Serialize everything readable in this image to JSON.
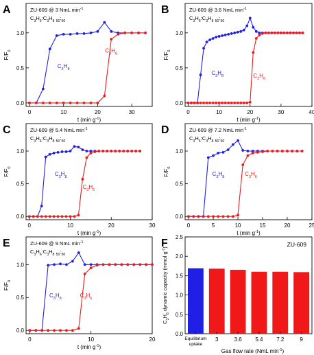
{
  "figure": {
    "width": 458,
    "height": 517,
    "colors": {
      "blue": "#1f1fe6",
      "red": "#f01818",
      "axis": "#000000"
    }
  },
  "chart_data": [
    {
      "panel": "A",
      "type": "line",
      "title": "ZU-609 @ 3 NmL min",
      "title_sup": "-1",
      "feed_label": "C3H6:C3H8  50:50",
      "xlabel": "t (min g",
      "ylabel": "F/F0",
      "xlim": [
        -1,
        36
      ],
      "ylim": [
        -0.05,
        1.42
      ],
      "xticks": [
        0,
        10,
        20,
        30
      ],
      "yticks": [
        0.0,
        0.5,
        1.0
      ],
      "series": [
        {
          "name": "C3H8",
          "color": "#1f1fe6",
          "x": [
            0,
            2,
            4,
            6,
            8,
            10,
            12,
            14,
            16,
            18,
            20,
            22,
            24,
            26,
            28,
            30,
            32,
            34
          ],
          "y": [
            0,
            0,
            0.2,
            0.77,
            0.96,
            0.98,
            0.98,
            0.99,
            0.99,
            1.0,
            1.02,
            1.15,
            1.02,
            1.0,
            1.0,
            1.0,
            1.0,
            1.0
          ]
        },
        {
          "name": "C3H6",
          "color": "#f01818",
          "x": [
            0,
            2,
            4,
            6,
            8,
            10,
            12,
            14,
            16,
            18,
            20,
            22,
            24,
            26,
            28,
            30,
            32,
            34
          ],
          "y": [
            0,
            0,
            0,
            0,
            0,
            0,
            0,
            0,
            0,
            0,
            0,
            0.1,
            0.91,
            0.98,
            1.0,
            1.0,
            1.0,
            1.0
          ]
        }
      ]
    },
    {
      "panel": "B",
      "type": "line",
      "title": "ZU-609 @ 3.6 NmL min",
      "title_sup": "-1",
      "feed_label": "C3H6:C3H8  50:50",
      "xlabel": "t (min g",
      "ylabel": "F/F0",
      "xlim": [
        -1,
        40
      ],
      "ylim": [
        -0.05,
        1.42
      ],
      "xticks": [
        0,
        10,
        20,
        30,
        40
      ],
      "yticks": [
        0.0,
        0.5,
        1.0
      ],
      "series": [
        {
          "name": "C3H8",
          "color": "#1f1fe6",
          "x": [
            0,
            1,
            2,
            3,
            4,
            5,
            6,
            7,
            8,
            9,
            10,
            11,
            12,
            13,
            14,
            15,
            16,
            17,
            18,
            19,
            20,
            21,
            22,
            23,
            24,
            25,
            26,
            27,
            28,
            29,
            30,
            31,
            32,
            33,
            34,
            35,
            36,
            37
          ],
          "y": [
            0,
            0,
            0,
            0,
            0.4,
            0.78,
            0.87,
            0.9,
            0.92,
            0.94,
            0.95,
            0.96,
            0.97,
            0.98,
            0.99,
            1.0,
            1.01,
            1.02,
            1.04,
            1.1,
            1.21,
            1.08,
            1.02,
            1.0,
            1.0,
            1.0,
            1.0,
            1.0,
            1.0,
            1.0,
            1.0,
            1.0,
            1.0,
            1.0,
            1.0,
            1.0,
            1.0,
            1.0
          ]
        },
        {
          "name": "C3H6",
          "color": "#f01818",
          "x": [
            0,
            1,
            2,
            3,
            4,
            5,
            6,
            7,
            8,
            9,
            10,
            11,
            12,
            13,
            14,
            15,
            16,
            17,
            18,
            19,
            20,
            21,
            22,
            23,
            24,
            25,
            26,
            27,
            28,
            29,
            30,
            31,
            32,
            33,
            34,
            35,
            36,
            37
          ],
          "y": [
            0,
            0,
            0,
            0,
            0,
            0,
            0,
            0,
            0,
            0,
            0,
            0,
            0,
            0,
            0,
            0,
            0,
            0,
            0,
            0,
            0.01,
            0.72,
            0.92,
            0.97,
            0.99,
            1.0,
            1.0,
            1.0,
            1.0,
            1.0,
            1.0,
            1.0,
            1.0,
            1.0,
            1.0,
            1.0,
            1.0,
            1.0
          ]
        }
      ]
    },
    {
      "panel": "C",
      "type": "line",
      "title": "ZU-609 @ 5.4 NmL min",
      "title_sup": "-1",
      "feed_label": "C3H6:C3H8  50:50",
      "xlabel": "t (min g",
      "ylabel": "F/F0",
      "xlim": [
        -0.8,
        30
      ],
      "ylim": [
        -0.05,
        1.42
      ],
      "xticks": [
        0,
        10,
        20,
        30
      ],
      "yticks": [
        0.0,
        0.5,
        1.0
      ],
      "series": [
        {
          "name": "C3H8",
          "color": "#1f1fe6",
          "x": [
            0,
            1,
            2,
            3,
            4,
            5,
            6,
            7,
            8,
            9,
            10,
            11,
            12,
            13,
            14,
            15,
            16,
            17,
            18,
            19,
            20,
            21,
            22,
            23,
            24,
            25,
            26,
            27
          ],
          "y": [
            0,
            0,
            0,
            0.16,
            0.91,
            0.95,
            0.97,
            0.98,
            0.99,
            0.99,
            1.0,
            1.07,
            1.06,
            1.02,
            1.0,
            1.0,
            1.0,
            1.0,
            1.0,
            1.0,
            1.0,
            1.0,
            1.0,
            1.0,
            1.0,
            1.0,
            1.0,
            1.0
          ]
        },
        {
          "name": "C3H6",
          "color": "#f01818",
          "x": [
            0,
            1,
            2,
            3,
            4,
            5,
            6,
            7,
            8,
            9,
            10,
            11,
            12,
            13,
            14,
            15,
            16,
            17,
            18,
            19,
            20,
            21,
            22,
            23,
            24,
            25,
            26,
            27
          ],
          "y": [
            0,
            0,
            0,
            0,
            0,
            0,
            0,
            0,
            0,
            0,
            0,
            0,
            0.02,
            0.57,
            0.9,
            0.97,
            0.99,
            1.0,
            1.0,
            1.0,
            1.0,
            1.0,
            1.0,
            1.0,
            1.0,
            1.0,
            1.0,
            1.0
          ]
        }
      ]
    },
    {
      "panel": "D",
      "type": "line",
      "title": "ZU-609 @ 7.2 NmL min",
      "title_sup": "-1",
      "feed_label": "C3H6:C3H8  50:50",
      "xlabel": "t (min g",
      "ylabel": "F/F0",
      "xlim": [
        -0.7,
        25
      ],
      "ylim": [
        -0.05,
        1.42
      ],
      "xticks": [
        0,
        5,
        10,
        15,
        20,
        25
      ],
      "yticks": [
        0.0,
        0.5,
        1.0
      ],
      "series": [
        {
          "name": "C3H8",
          "color": "#1f1fe6",
          "x": [
            0,
            1,
            2,
            3,
            4,
            5,
            6,
            7,
            8,
            9,
            10,
            11,
            12,
            13,
            14,
            15,
            16,
            17,
            18,
            19,
            20,
            21,
            22,
            23
          ],
          "y": [
            0,
            0,
            0,
            0,
            0.9,
            0.93,
            0.97,
            0.98,
            1.02,
            1.1,
            1.16,
            1.01,
            1.0,
            1.0,
            1.0,
            1.0,
            1.0,
            1.0,
            1.0,
            1.0,
            1.0,
            1.0,
            1.0,
            1.0
          ]
        },
        {
          "name": "C3H6",
          "color": "#f01818",
          "x": [
            0,
            1,
            2,
            3,
            4,
            5,
            6,
            7,
            8,
            9,
            10,
            11,
            12,
            13,
            14,
            15,
            16,
            17,
            18,
            19,
            20,
            21,
            22,
            23
          ],
          "y": [
            0,
            0,
            0,
            0,
            0,
            0,
            0,
            0,
            0,
            0,
            0.02,
            0.79,
            0.93,
            0.97,
            0.98,
            0.99,
            1.0,
            1.0,
            1.0,
            1.0,
            1.0,
            1.0,
            1.0,
            1.0
          ]
        }
      ]
    },
    {
      "panel": "E",
      "type": "line",
      "title": "ZU-609 @ 9 NmL min",
      "title_sup": "-1",
      "feed_label": "C3H6:C3H8  50:50",
      "xlabel": "t (min g",
      "ylabel": "F/F0",
      "xlim": [
        -0.6,
        20
      ],
      "ylim": [
        -0.05,
        1.42
      ],
      "xticks": [
        0,
        10,
        20
      ],
      "yticks": [
        0.0,
        0.5,
        1.0
      ],
      "series": [
        {
          "name": "C3H8",
          "color": "#1f1fe6",
          "x": [
            0,
            1,
            2,
            3,
            4,
            5,
            6,
            7,
            8,
            9,
            10,
            11,
            12,
            13,
            14,
            15,
            16,
            17,
            18,
            19,
            20
          ],
          "y": [
            0,
            0,
            0,
            0.99,
            1.0,
            1.01,
            1.0,
            1.05,
            1.18,
            1.0,
            1.0,
            1.0,
            1.0,
            1.0,
            1.0,
            1.0,
            1.0,
            1.0,
            1.0,
            1.0,
            1.0
          ]
        },
        {
          "name": "C3H6",
          "color": "#f01818",
          "x": [
            0,
            1,
            2,
            3,
            4,
            5,
            6,
            7,
            8,
            9,
            10,
            11,
            12,
            13,
            14,
            15,
            16,
            17,
            18,
            19,
            20
          ],
          "y": [
            0,
            0,
            0,
            0,
            0,
            0,
            0,
            0,
            0.03,
            0.86,
            0.95,
            0.99,
            1.0,
            1.0,
            1.0,
            1.0,
            1.0,
            1.0,
            1.0,
            1.0,
            1.0
          ]
        }
      ]
    },
    {
      "panel": "F",
      "type": "bar",
      "title": "ZU-609",
      "xlabel": "Gas flow rate (NmL min",
      "ylabel": "C3H6 dynamic capacity (mmol g",
      "categories": [
        "Equilibrium uptake",
        "3",
        "3.6",
        "5.4",
        "7.2",
        "9"
      ],
      "values": [
        1.69,
        1.68,
        1.65,
        1.6,
        1.6,
        1.59
      ],
      "bar_colors": [
        "#1f1fe6",
        "#f01818",
        "#f01818",
        "#f01818",
        "#f01818",
        "#f01818"
      ],
      "ylim": [
        0,
        2.5
      ],
      "yticks": [
        0.0,
        0.5,
        1.0,
        1.5,
        2.0,
        2.5
      ]
    }
  ]
}
